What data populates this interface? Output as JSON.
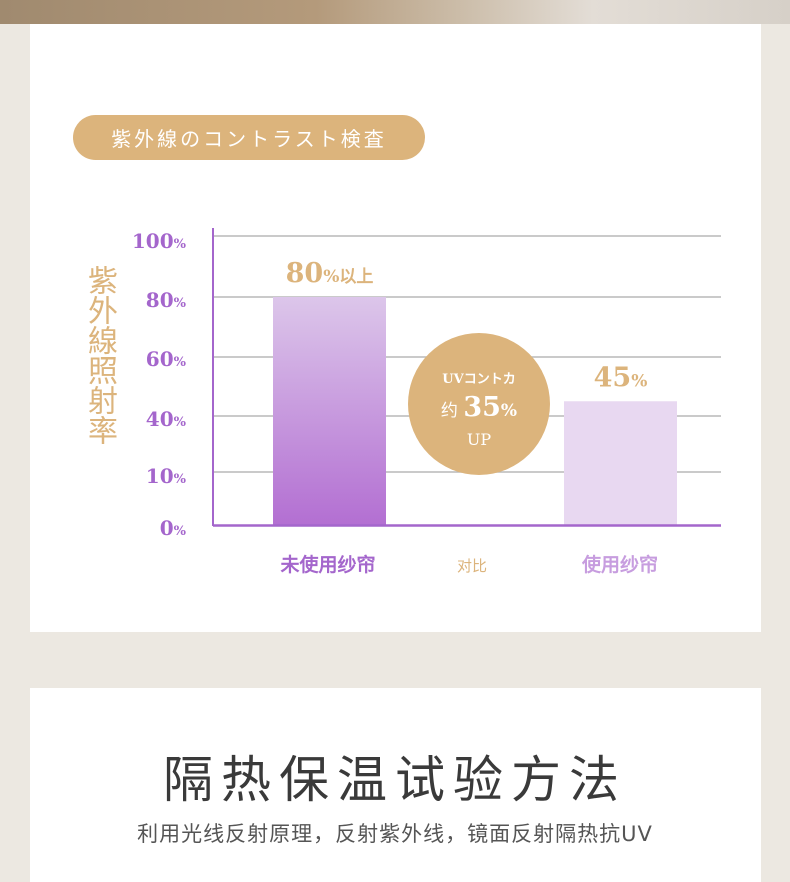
{
  "chart_data": {
    "type": "bar",
    "title": "紫外線のコントラスト検査",
    "ylabel": "紫外線照射率",
    "y_ticks": [
      {
        "value": 0,
        "num": "0",
        "unit": "%"
      },
      {
        "value": 10,
        "num": "10",
        "unit": "%"
      },
      {
        "value": 40,
        "num": "40",
        "unit": "%"
      },
      {
        "value": 60,
        "num": "60",
        "unit": "%"
      },
      {
        "value": 80,
        "num": "80",
        "unit": "%"
      },
      {
        "value": 100,
        "num": "100",
        "unit": "%"
      }
    ],
    "grid": true,
    "categories": [
      "未使用纱帘",
      "使用纱帘"
    ],
    "values": [
      80,
      45
    ],
    "data_labels": [
      {
        "num": "80",
        "unit": "%",
        "suffix": "以上"
      },
      {
        "num": "45",
        "unit": "%",
        "suffix": ""
      }
    ],
    "bar_colors": [
      [
        "#dcc6ea",
        "#b36fd2"
      ],
      [
        "#e8d8f1",
        "#e8d8f1"
      ]
    ],
    "compare_label": "对比",
    "callout": {
      "line1": "UVコントカ",
      "prefix": "约",
      "num": "35",
      "unit": "%",
      "line3": "UP"
    }
  },
  "section2": {
    "heading": "隔热保温试验方法",
    "subheading": "利用光线反射原理，反射紫外线，镜面反射隔热抗UV"
  },
  "colors": {
    "gold": "#dcb47c",
    "purple": "#a466cc",
    "category_used": "#c79ddf"
  }
}
